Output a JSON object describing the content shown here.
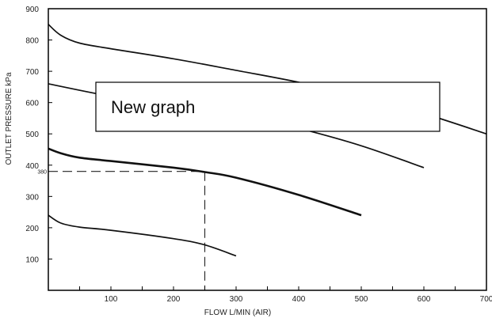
{
  "chart_data": {
    "type": "line",
    "xlabel": "FLOW L/MIN (AIR)",
    "ylabel": "OUTLET PRESSURE kPa",
    "xlim": [
      0,
      700
    ],
    "ylim": [
      0,
      900
    ],
    "x_ticks": [
      100,
      200,
      300,
      400,
      500,
      600,
      700
    ],
    "y_ticks": [
      100,
      200,
      300,
      400,
      500,
      600,
      700,
      800,
      900
    ],
    "series": [
      {
        "x": [
          0,
          20,
          50,
          100,
          200,
          300,
          400,
          500,
          600,
          700
        ],
        "y": [
          850,
          815,
          790,
          772,
          740,
          703,
          665,
          620,
          565,
          500
        ]
      },
      {
        "x": [
          0,
          100,
          200,
          300,
          400,
          500,
          600
        ],
        "y": [
          660,
          620,
          590,
          565,
          518,
          462,
          392
        ]
      },
      {
        "x": [
          0,
          20,
          50,
          100,
          200,
          250,
          300,
          400,
          500
        ],
        "y": [
          453,
          438,
          424,
          413,
          392,
          378,
          360,
          305,
          240
        ]
      },
      {
        "x": [
          0,
          20,
          50,
          100,
          200,
          250,
          300
        ],
        "y": [
          240,
          215,
          202,
          192,
          165,
          145,
          110
        ]
      }
    ],
    "reference": {
      "x": 250,
      "y": 380,
      "label": "380"
    },
    "annotation": "New graph"
  },
  "colors": {
    "line": "#111111",
    "frame": "#000000",
    "background": "#ffffff"
  }
}
